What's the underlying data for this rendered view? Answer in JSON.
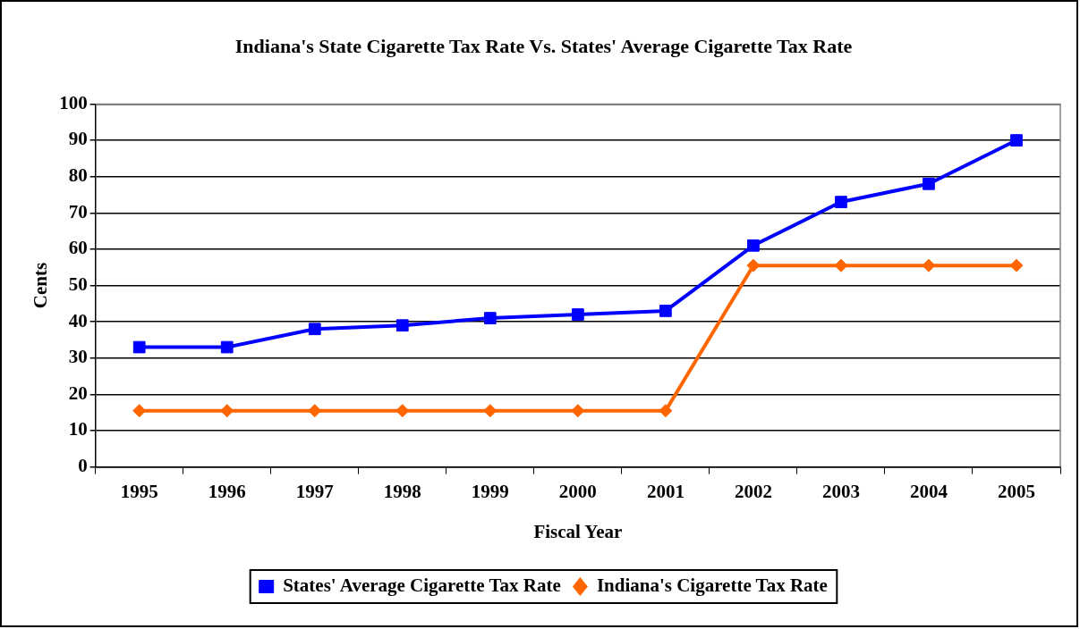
{
  "chart_data": {
    "type": "line",
    "title": "Indiana's State Cigarette Tax Rate Vs. States' Average Cigarette Tax Rate",
    "xlabel": "Fiscal Year",
    "ylabel": "Cents",
    "categories": [
      "1995",
      "1996",
      "1997",
      "1998",
      "1999",
      "2000",
      "2001",
      "2002",
      "2003",
      "2004",
      "2005"
    ],
    "series": [
      {
        "name": "States' Average Cigarette Tax Rate",
        "color": "#0000ff",
        "marker": "square",
        "values": [
          33,
          33,
          38,
          39,
          41,
          42,
          43,
          61,
          73,
          78,
          90
        ]
      },
      {
        "name": "Indiana's Cigarette Tax Rate",
        "color": "#ff6600",
        "marker": "diamond",
        "values": [
          15.5,
          15.5,
          15.5,
          15.5,
          15.5,
          15.5,
          15.5,
          55.5,
          55.5,
          55.5,
          55.5
        ]
      }
    ],
    "ylim": [
      0,
      100
    ],
    "yticks": [
      0,
      10,
      20,
      30,
      40,
      50,
      60,
      70,
      80,
      90,
      100
    ],
    "grid": "y",
    "legend": "bottom",
    "line_style": "solid"
  }
}
